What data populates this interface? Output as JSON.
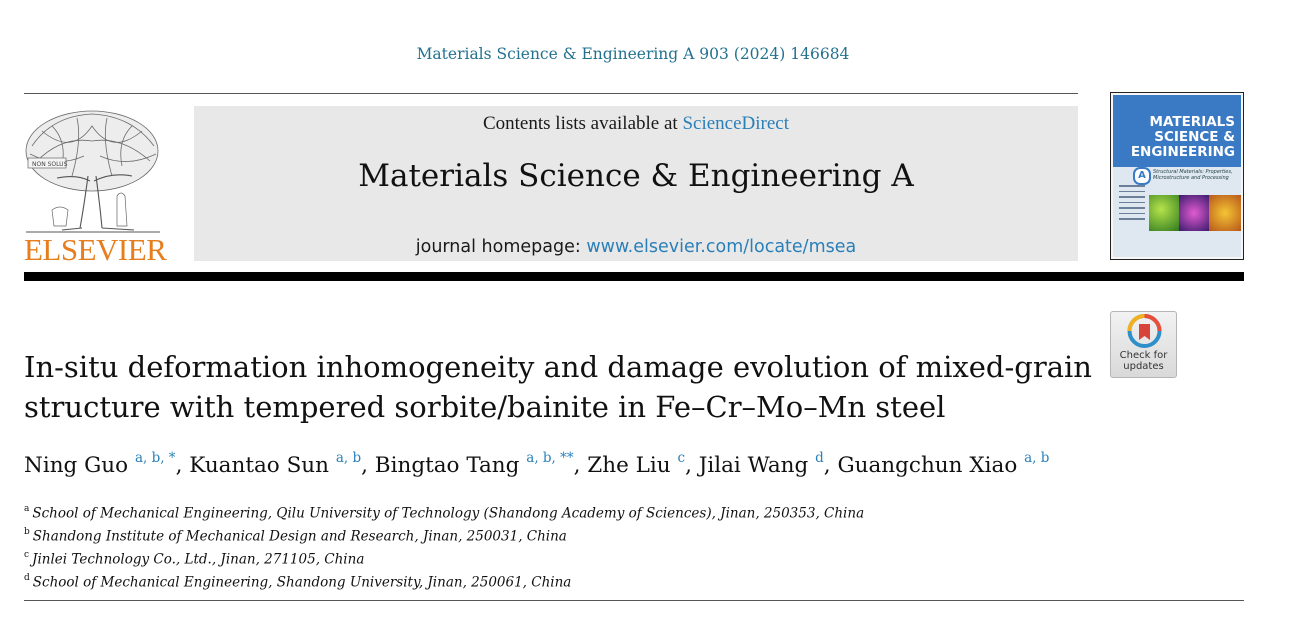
{
  "header": {
    "citation": "Materials Science & Engineering A 903 (2024) 146684",
    "contents_prefix": "Contents lists available at ",
    "contents_link": "ScienceDirect",
    "journal_title": "Materials Science & Engineering A",
    "homepage_prefix": "journal homepage: ",
    "homepage_link": "www.elsevier.com/locate/msea"
  },
  "logo": {
    "wordmark": "ELSEVIER",
    "brand_color": "#e67e1e"
  },
  "cover": {
    "title_line1": "MATERIALS",
    "title_line2": "SCIENCE &",
    "title_line3": "ENGINEERING",
    "section_letter": "A",
    "subtitle": "Structural Materials: Properties, Microstructure and Processing"
  },
  "check_updates": {
    "label": "Check for\nupdates"
  },
  "article": {
    "title": "In-situ deformation inhomogeneity and damage evolution of mixed-grain structure with tempered sorbite/bainite in Fe–Cr–Mo–Mn steel",
    "authors": [
      {
        "name": "Ning Guo",
        "sup": "a, b, *"
      },
      {
        "name": "Kuantao Sun",
        "sup": "a, b"
      },
      {
        "name": "Bingtao Tang",
        "sup": "a, b, **"
      },
      {
        "name": "Zhe Liu",
        "sup": "c"
      },
      {
        "name": "Jilai Wang",
        "sup": "d"
      },
      {
        "name": "Guangchun Xiao",
        "sup": "a, b"
      }
    ],
    "affiliations": [
      {
        "key": "a",
        "text": "School of Mechanical Engineering, Qilu University of Technology (Shandong Academy of Sciences), Jinan, 250353, China"
      },
      {
        "key": "b",
        "text": "Shandong Institute of Mechanical Design and Research, Jinan, 250031, China"
      },
      {
        "key": "c",
        "text": "Jinlei Technology Co., Ltd., Jinan, 271105, China"
      },
      {
        "key": "d",
        "text": "School of Mechanical Engineering, Shandong University, Jinan, 250061, China"
      }
    ]
  },
  "colors": {
    "link": "#2a7fb8",
    "citation": "#23718f",
    "banner_bg": "#e8e8e8"
  }
}
